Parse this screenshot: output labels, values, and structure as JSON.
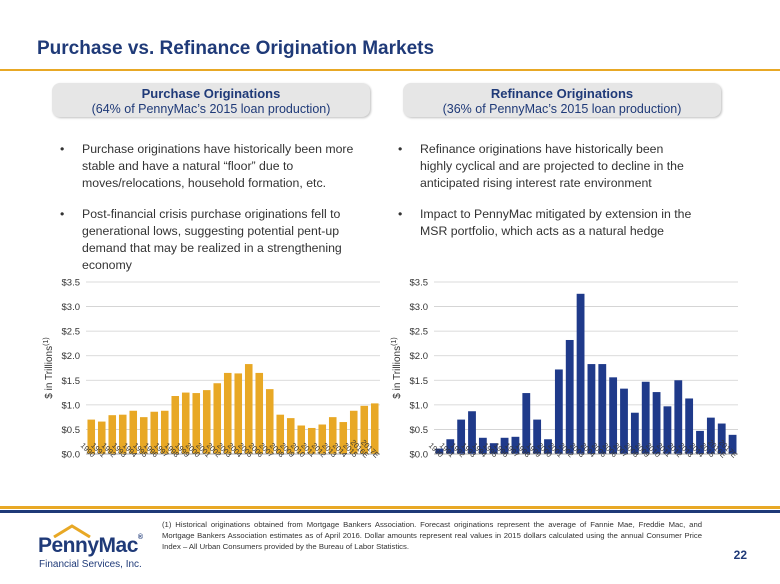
{
  "page_title": "Purchase vs. Refinance Origination Markets",
  "left_panel": {
    "header": "Purchase Originations",
    "subheader": "(64% of PennyMac’s 2015 loan production)",
    "bullets": [
      "Purchase originations have historically been more stable and have a natural “floor” due to moves/relocations, household formation, etc.",
      "Post-financial crisis purchase originations fell to generational lows, suggesting potential pent-up demand that may be realized in a strengthening economy"
    ]
  },
  "right_panel": {
    "header": "Refinance Originations",
    "subheader": "(36% of PennyMac’s 2015 loan production)",
    "bullets": [
      "Refinance originations have historically been highly cyclical and are projected to decline in the anticipated rising interest rate environment",
      "Impact to PennyMac mitigated by extension in the MSR portfolio, which acts as a natural hedge"
    ]
  },
  "chart_data": [
    {
      "type": "bar",
      "ylabel": "$ in Trillions(1)",
      "ylim": [
        0,
        3.5
      ],
      "yticks": [
        "$0.0",
        "$0.5",
        "$1.0",
        "$1.5",
        "$2.0",
        "$2.5",
        "$3.0",
        "$3.5"
      ],
      "grid": true,
      "color": "#e8a825",
      "categories": [
        "1990",
        "1991",
        "1992",
        "1993",
        "1994",
        "1995",
        "1996",
        "1997",
        "1998",
        "1999",
        "2000",
        "2001",
        "2002",
        "2003",
        "2004",
        "2005",
        "2006",
        "2007",
        "2008",
        "2009",
        "2010",
        "2011",
        "2012",
        "2013",
        "2014",
        "2015",
        "2016E",
        "2017E"
      ],
      "values": [
        0.7,
        0.66,
        0.79,
        0.8,
        0.88,
        0.75,
        0.86,
        0.88,
        1.18,
        1.25,
        1.24,
        1.3,
        1.44,
        1.65,
        1.64,
        1.83,
        1.65,
        1.32,
        0.8,
        0.73,
        0.58,
        0.53,
        0.6,
        0.75,
        0.65,
        0.88,
        0.98,
        1.03
      ]
    },
    {
      "type": "bar",
      "ylabel": "$ in Trillions(1)",
      "ylim": [
        0,
        3.5
      ],
      "yticks": [
        "$0.0",
        "$0.5",
        "$1.0",
        "$1.5",
        "$2.0",
        "$2.5",
        "$3.0",
        "$3.5"
      ],
      "grid": true,
      "color": "#1f3a8a",
      "categories": [
        "1990",
        "1991",
        "1992",
        "1993",
        "1994",
        "1995",
        "1996",
        "1997",
        "1998",
        "1999",
        "2000",
        "2001",
        "2002",
        "2003",
        "2004",
        "2005",
        "2006",
        "2007",
        "2008",
        "2009",
        "2010",
        "2011",
        "2012",
        "2013",
        "2014",
        "2015",
        "2016E",
        "2017E"
      ],
      "values": [
        0.11,
        0.3,
        0.7,
        0.87,
        0.33,
        0.22,
        0.33,
        0.35,
        1.24,
        0.7,
        0.3,
        1.72,
        2.32,
        3.26,
        1.83,
        1.83,
        1.56,
        1.33,
        0.84,
        1.47,
        1.26,
        0.97,
        1.5,
        1.13,
        0.47,
        0.74,
        0.62,
        0.39
      ]
    }
  ],
  "footnote": "(1)   Historical originations obtained from Mortgage Bankers Association. Forecast originations represent the average of Fannie Mae, Freddie Mac, and Mortgage Bankers Association estimates as of April 2016. Dollar amounts represent real values in 2015 dollars calculated using the annual Consumer Price Index – All Urban Consumers provided by the Bureau of Labor Statistics.",
  "page_number": "22",
  "logo": {
    "name": "PennyMac",
    "registered": "®",
    "subtitle": "Financial Services, Inc."
  },
  "colors": {
    "brand_blue": "#1f3a78",
    "accent_gold": "#e8a825",
    "refinance_bar": "#1f3a8a"
  }
}
